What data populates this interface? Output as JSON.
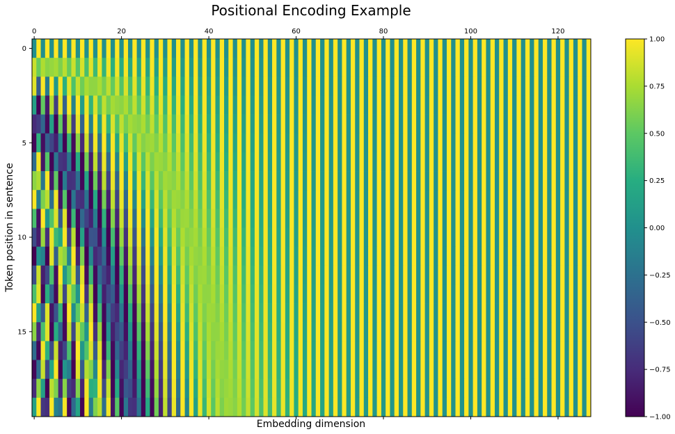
{
  "chart_data": {
    "type": "heatmap",
    "title": "Positional Encoding Example",
    "xlabel": "Embedding dimension",
    "ylabel": "Token position in sentence",
    "n_positions": 20,
    "d_model": 128,
    "encoding": "sinusoidal: PE(pos,2i)=sin(pos/10000^(2i/d_model)), PE(pos,2i+1)=cos(pos/10000^(2i/d_model))",
    "xlim": [
      0,
      127
    ],
    "ylim": [
      0,
      19
    ],
    "x_ticks": [
      0,
      20,
      40,
      60,
      80,
      100,
      120
    ],
    "y_ticks": [
      0,
      5,
      10,
      15
    ],
    "x_tick_labels": [
      "0",
      "20",
      "40",
      "60",
      "80",
      "100",
      "120"
    ],
    "y_tick_labels": [
      "0",
      "5",
      "10",
      "15"
    ],
    "x_axis_ticks_position": "top",
    "y_axis_inverted": true,
    "grid": false,
    "colormap": "viridis",
    "colorbar": {
      "range": [
        -1.0,
        1.0
      ],
      "ticks": [
        -1.0,
        -0.75,
        -0.5,
        -0.25,
        0.0,
        0.25,
        0.5,
        0.75,
        1.0
      ],
      "tick_labels": [
        "−1.00",
        "−0.75",
        "−0.50",
        "−0.25",
        "0.00",
        "0.25",
        "0.50",
        "0.75",
        "1.00"
      ],
      "placement": "right"
    }
  }
}
